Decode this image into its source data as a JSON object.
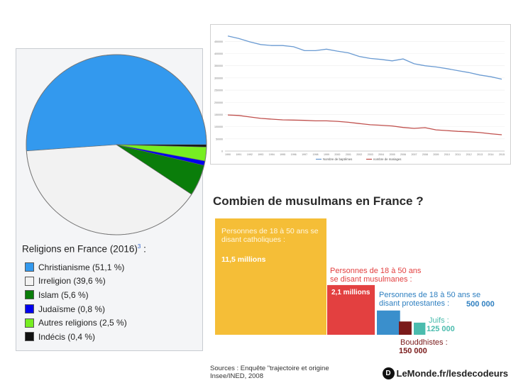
{
  "pie_panel": {
    "title": "Religions en France (2016)",
    "title_ref": "3",
    "title_suffix": ":"
  },
  "line_panel": {
    "legend_baptemes": "Nombre de baptêmes",
    "legend_mariages": "nombre de mariages"
  },
  "bar_panel": {
    "title": "Combien de musulmans en France ?",
    "catholiques_label": "Personnes de 18 à 50 ans se disant catholiques :",
    "catholiques_value": "11,5 millions",
    "musulmans_label": "Personnes de 18 à 50 ans se disant musulmanes :",
    "musulmans_value": "2,1 millions",
    "protestants_label": "Personnes de 18 à 50 ans se disant protestantes :",
    "protestants_value": "500 000",
    "juifs_label": "Juifs :",
    "juifs_value": "125 000",
    "bouddhistes_label": "Bouddhistes :",
    "bouddhistes_value": "150 000",
    "source_line1": "Sources : Enquête \"trajectoire et origine",
    "source_line2": "Insee/INED, 2008",
    "brand": "LeMonde.fr/lesdecodeurs",
    "brand_logo": "D"
  },
  "chart_data": [
    {
      "type": "pie",
      "title": "Religions en France (2016)",
      "slices": [
        {
          "label": "Christianisme (51,1 %)",
          "value": 51.1,
          "color": "#3399ee"
        },
        {
          "label": "Irreligion (39,6 %)",
          "value": 39.6,
          "color": "#f2f2f2"
        },
        {
          "label": "Islam (5,6 %)",
          "value": 5.6,
          "color": "#0a7d0a"
        },
        {
          "label": "Judaïsme (0,8 %)",
          "value": 0.8,
          "color": "#0000ee"
        },
        {
          "label": "Autres religions (2,5 %)",
          "value": 2.5,
          "color": "#77ee22"
        },
        {
          "label": "Indécis (0,4 %)",
          "value": 0.4,
          "color": "#111111"
        }
      ]
    },
    {
      "type": "line",
      "title": "",
      "y_ticks": [
        "450000",
        "400000",
        "350000",
        "300000",
        "250000",
        "200000",
        "150000",
        "100000",
        "50000",
        "0"
      ],
      "ylim": [
        0,
        480000
      ],
      "x": [
        1990,
        1991,
        1992,
        1993,
        1994,
        1995,
        1996,
        1997,
        1998,
        1999,
        2000,
        2001,
        2002,
        2003,
        2004,
        2005,
        2006,
        2007,
        2008,
        2009,
        2010,
        2011,
        2012,
        2013,
        2014,
        2015
      ],
      "series": [
        {
          "name": "Nombre de baptêmes",
          "color": "#6b9bd2",
          "values": [
            472000,
            462000,
            448000,
            437000,
            433000,
            433000,
            428000,
            412000,
            412000,
            418000,
            410000,
            403000,
            388000,
            380000,
            376000,
            370000,
            378000,
            358000,
            350000,
            345000,
            338000,
            330000,
            322000,
            312000,
            305000,
            295000
          ]
        },
        {
          "name": "nombre de mariages",
          "color": "#c0504d",
          "values": [
            148000,
            146000,
            140000,
            134000,
            131000,
            128000,
            127000,
            126000,
            124000,
            124000,
            122000,
            118000,
            113000,
            108000,
            106000,
            103000,
            97000,
            93000,
            96000,
            87000,
            84000,
            81000,
            79000,
            76000,
            71000,
            67000
          ]
        }
      ]
    },
    {
      "type": "bar",
      "title": "Combien de musulmans en France ?",
      "categories": [
        "catholiques",
        "musulmans",
        "protestants",
        "bouddhistes",
        "juifs"
      ],
      "values": [
        11500000,
        2100000,
        500000,
        150000,
        125000
      ],
      "colors": [
        "#f5be37",
        "#e34040",
        "#3a8fcc",
        "#7a1a1a",
        "#4bbcae"
      ]
    }
  ]
}
